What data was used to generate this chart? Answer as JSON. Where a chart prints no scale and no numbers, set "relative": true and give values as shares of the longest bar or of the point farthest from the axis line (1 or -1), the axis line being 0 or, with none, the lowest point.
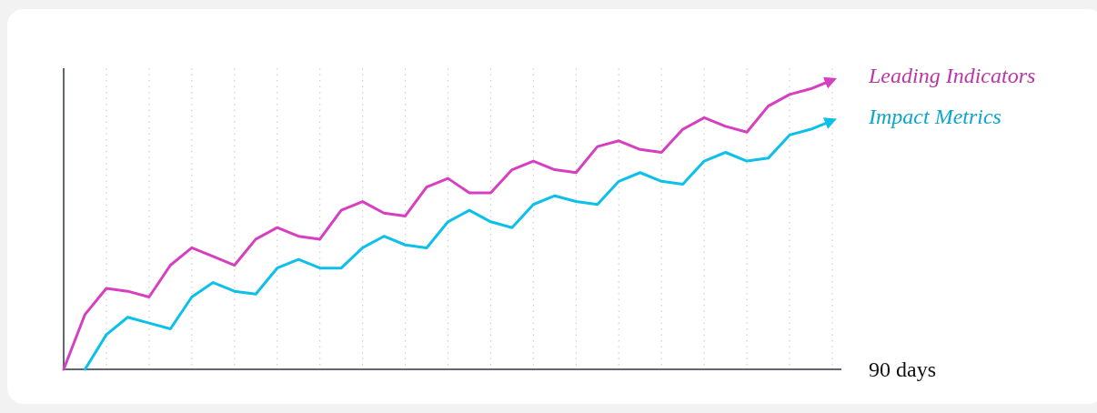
{
  "chart_data": {
    "type": "line",
    "relative": true,
    "xlabel": "90 days",
    "categories": [
      null,
      null,
      null,
      null,
      null,
      null,
      null,
      null,
      null,
      null,
      null,
      null,
      null,
      null,
      null,
      null,
      null,
      null,
      null,
      null,
      null,
      null,
      null,
      null,
      null,
      null,
      null,
      null,
      null,
      null,
      null,
      null,
      null,
      null,
      null,
      null,
      null
    ],
    "grid": "x",
    "marker": "none",
    "line_style": "solid",
    "series": [
      {
        "name": "Leading Indicators",
        "color": "#d63fbf",
        "values": [
          0,
          0.19,
          0.28,
          0.27,
          0.25,
          0.36,
          0.42,
          0.39,
          0.36,
          0.45,
          0.49,
          0.46,
          0.45,
          0.55,
          0.58,
          0.54,
          0.53,
          0.63,
          0.66,
          0.61,
          0.61,
          0.69,
          0.72,
          0.69,
          0.68,
          0.77,
          0.79,
          0.76,
          0.75,
          0.83,
          0.87,
          0.84,
          0.82,
          0.91,
          0.95,
          0.97,
          1.0
        ]
      },
      {
        "name": "Impact Metrics",
        "color": "#0cc0ea",
        "values": [
          null,
          0,
          0.12,
          0.18,
          0.16,
          0.14,
          0.25,
          0.3,
          0.27,
          0.26,
          0.35,
          0.38,
          0.35,
          0.35,
          0.42,
          0.46,
          0.43,
          0.42,
          0.51,
          0.55,
          0.51,
          0.49,
          0.57,
          0.6,
          0.58,
          0.57,
          0.65,
          0.68,
          0.65,
          0.64,
          0.72,
          0.75,
          0.72,
          0.73,
          0.81,
          0.83,
          0.86
        ]
      }
    ]
  }
}
